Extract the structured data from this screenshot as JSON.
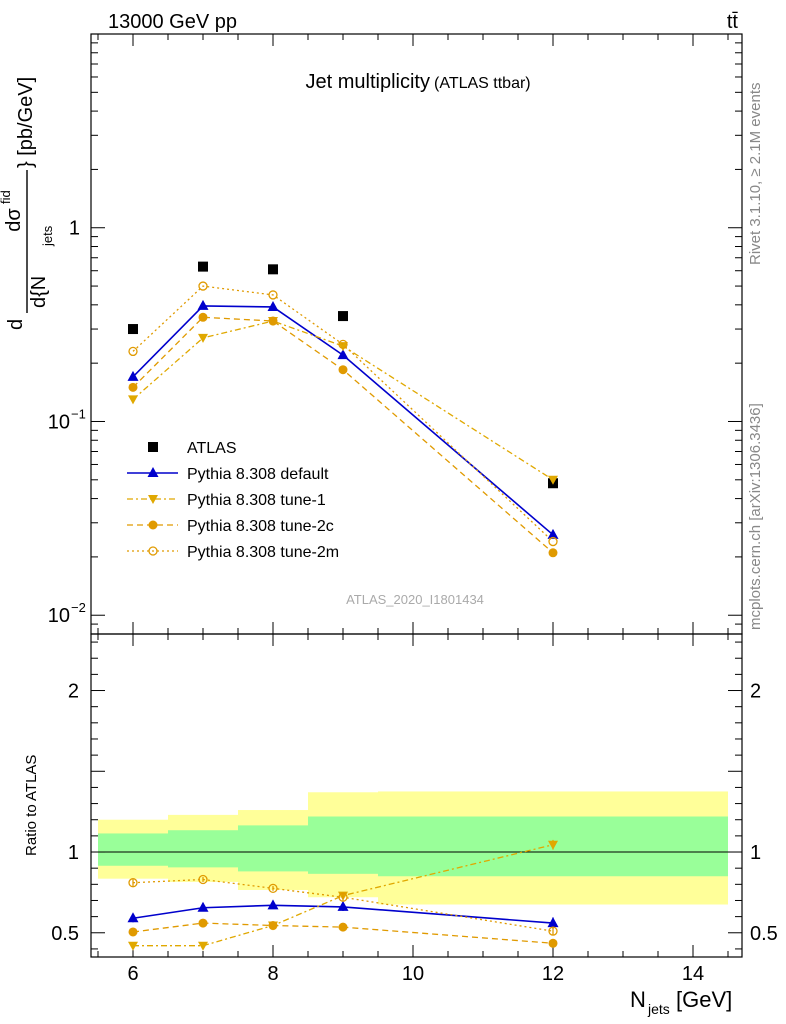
{
  "header": {
    "left": "13000 GeV pp",
    "right": "tt̄"
  },
  "side_labels": {
    "rivet": "Rivet 3.1.10, ≥ 2.1M events",
    "mcplots": "mcplots.cern.ch [arXiv:1306.3436]"
  },
  "chart_data": [
    {
      "type": "scatter",
      "title": "Jet multiplicity",
      "subtitle": "(ATLAS ttbar)",
      "watermark": "ATLAS_2020_I1801434",
      "yscale": "log",
      "ylabel_main": "dσ",
      "ylabel_main_sup": "fid",
      "ylabel_den": "d{N",
      "ylabel_den_sub": "jets",
      "ylabel_tail": "} [pb/GeV]",
      "xlim": [
        5.4,
        14.7
      ],
      "ylim": [
        0.008,
        10
      ],
      "yticks": [
        {
          "v": 1,
          "base": "1",
          "exp": ""
        },
        {
          "v": 0.1,
          "base": "10",
          "exp": "−1"
        },
        {
          "v": 0.01,
          "base": "10",
          "exp": "−2"
        }
      ],
      "legend": {
        "position": "lower-left",
        "entries": [
          {
            "label": "ATLAS",
            "series": "atlas"
          },
          {
            "label": "Pythia 8.308 default",
            "series": "default"
          },
          {
            "label": "Pythia 8.308 tune-1",
            "series": "tune1"
          },
          {
            "label": "Pythia 8.308 tune-2c",
            "series": "tune2c"
          },
          {
            "label": "Pythia 8.308 tune-2m",
            "series": "tune2m"
          }
        ]
      },
      "series": [
        {
          "id": "atlas",
          "name": "ATLAS",
          "color": "#000000",
          "marker": "square",
          "line": "none",
          "x": [
            6,
            7,
            8,
            9,
            12
          ],
          "y": [
            0.3,
            0.63,
            0.61,
            0.35,
            0.048
          ]
        },
        {
          "id": "default",
          "name": "Pythia 8.308 default",
          "color": "#0000cc",
          "marker": "triangle-up",
          "line": "solid",
          "x": [
            6,
            7,
            8,
            9,
            12
          ],
          "y": [
            0.17,
            0.395,
            0.39,
            0.22,
            0.026
          ]
        },
        {
          "id": "tune1",
          "name": "Pythia 8.308 tune-1",
          "color": "#e0a800",
          "marker": "triangle-down",
          "line": "dashdot",
          "x": [
            6,
            7,
            8,
            9,
            12
          ],
          "y": [
            0.13,
            0.27,
            0.33,
            0.245,
            0.05
          ]
        },
        {
          "id": "tune2c",
          "name": "Pythia 8.308 tune-2c",
          "color": "#e09a00",
          "marker": "circle",
          "line": "dashed",
          "x": [
            6,
            7,
            8,
            9,
            12
          ],
          "y": [
            0.15,
            0.345,
            0.33,
            0.185,
            0.021
          ]
        },
        {
          "id": "tune2m",
          "name": "Pythia 8.308 tune-2m",
          "color": "#e09a00",
          "marker": "circle-open",
          "line": "dotted",
          "x": [
            6,
            7,
            8,
            9,
            12
          ],
          "y": [
            0.23,
            0.5,
            0.45,
            0.25,
            0.024
          ]
        }
      ]
    },
    {
      "type": "scatter",
      "ylabel": "Ratio to ATLAS",
      "xlabel_base": "N",
      "xlabel_sub": "jets",
      "xlabel_tail": " [GeV]",
      "xlim": [
        5.4,
        14.7
      ],
      "ylim": [
        0.35,
        2.35
      ],
      "xticks": [
        6,
        8,
        10,
        12,
        14
      ],
      "yticks": [
        {
          "v": 2,
          "label": "2"
        },
        {
          "v": 1,
          "label": "1"
        },
        {
          "v": 0.5,
          "label": "0.5"
        }
      ],
      "bands": [
        {
          "x0": 5.5,
          "x1": 6.5,
          "yellow": [
            0.835,
            1.2
          ],
          "green": [
            0.915,
            1.115
          ]
        },
        {
          "x0": 6.5,
          "x1": 7.5,
          "yellow": [
            0.815,
            1.23
          ],
          "green": [
            0.905,
            1.135
          ]
        },
        {
          "x0": 7.5,
          "x1": 8.5,
          "yellow": [
            0.765,
            1.26
          ],
          "green": [
            0.88,
            1.165
          ]
        },
        {
          "x0": 8.5,
          "x1": 9.5,
          "yellow": [
            0.72,
            1.37
          ],
          "green": [
            0.865,
            1.22
          ]
        },
        {
          "x0": 9.5,
          "x1": 14.5,
          "yellow": [
            0.675,
            1.375
          ],
          "green": [
            0.85,
            1.22
          ]
        }
      ],
      "series": [
        {
          "id": "default",
          "color": "#0000cc",
          "marker": "triangle-up",
          "line": "solid",
          "x": [
            6,
            7,
            8,
            9,
            12
          ],
          "y": [
            0.59,
            0.655,
            0.67,
            0.66,
            0.56
          ],
          "err": [
            0.025,
            0.02,
            0.018,
            0.025,
            0.035
          ]
        },
        {
          "id": "tune1",
          "color": "#e0a800",
          "marker": "triangle-down",
          "line": "dashdot",
          "x": [
            6,
            7,
            8,
            9,
            12
          ],
          "y": [
            0.42,
            0.42,
            0.545,
            0.73,
            1.045
          ],
          "err": [
            0.015,
            0.012,
            0.012,
            0.018,
            0.03
          ]
        },
        {
          "id": "tune2c",
          "color": "#e09a00",
          "marker": "circle",
          "line": "dashed",
          "x": [
            6,
            7,
            8,
            9,
            12
          ],
          "y": [
            0.505,
            0.56,
            0.545,
            0.535,
            0.435
          ],
          "err": [
            0.02,
            0.015,
            0.015,
            0.02,
            0.025
          ]
        },
        {
          "id": "tune2m",
          "color": "#e09a00",
          "marker": "circle-open",
          "line": "dotted",
          "x": [
            6,
            7,
            8,
            9,
            12
          ],
          "y": [
            0.81,
            0.83,
            0.775,
            0.72,
            0.51
          ],
          "err": [
            0.02,
            0.015,
            0.015,
            0.02,
            0.025
          ]
        }
      ]
    }
  ]
}
